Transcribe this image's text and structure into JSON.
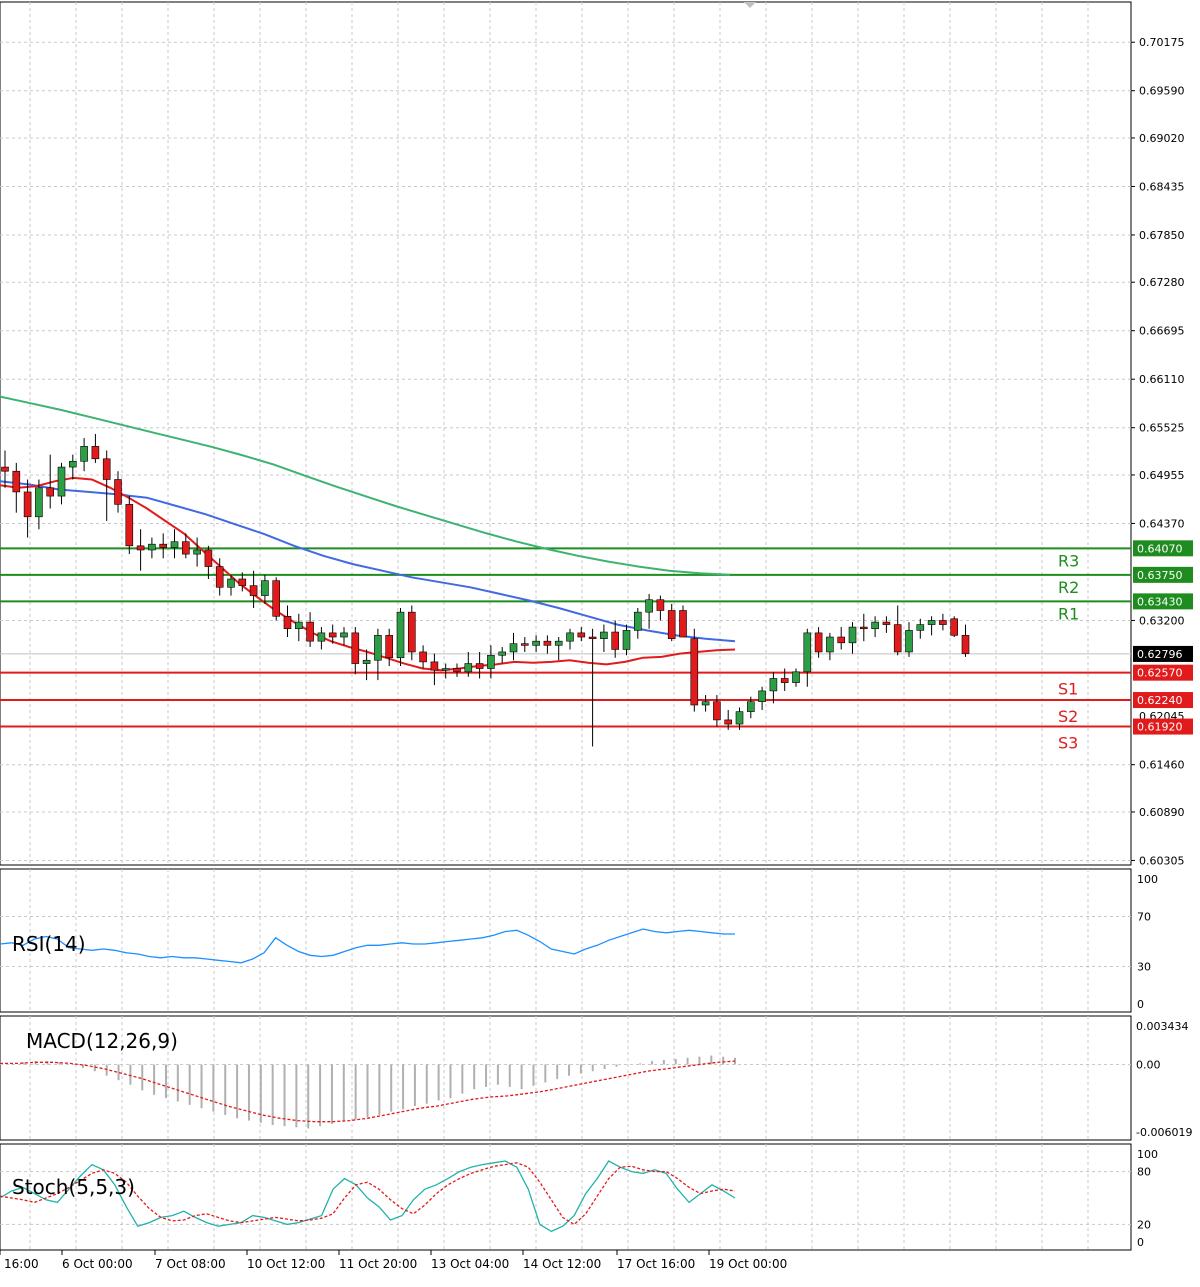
{
  "colors": {
    "background": "#ffffff",
    "grid": "#c8c8c8",
    "bull_candle": "#2e9e46",
    "bear_candle": "#e11b1b",
    "ma_fast": "#e11b1b",
    "ma_mid": "#4169e1",
    "ma_slow": "#3cb371",
    "resistance": "#1e8c1e",
    "support": "#e11b1b",
    "rsi": "#1e90ff",
    "macd_hist": "#b0b0b0",
    "macd_signal": "#e11b1b",
    "stoch_main": "#20b2aa",
    "stoch_signal": "#e11b1b",
    "price_tag": "#000000"
  },
  "chart_data": [
    {
      "type": "candlestick",
      "panel": "price",
      "y_ticks": [
        "0.70175",
        "0.69590",
        "0.69020",
        "0.68435",
        "0.67850",
        "0.67280",
        "0.66695",
        "0.66110",
        "0.65525",
        "0.64955",
        "0.64370",
        "0.63200",
        "0.61460",
        "0.60890",
        "0.60305"
      ],
      "ylim": [
        0.6025,
        0.7066
      ],
      "x_ticks": [
        "16:00",
        "6 Oct 00:00",
        "7 Oct 08:00",
        "10 Oct 12:00",
        "11 Oct 20:00",
        "13 Oct 04:00",
        "14 Oct 12:00",
        "17 Oct 16:00",
        "19 Oct 00:00"
      ],
      "current_price": "0.62796",
      "partially_hidden_label": "0.62045",
      "levels": [
        {
          "name": "R3",
          "value": 0.6407,
          "label": "0.64070",
          "kind": "resistance"
        },
        {
          "name": "R2",
          "value": 0.6375,
          "label": "0.63750",
          "kind": "resistance"
        },
        {
          "name": "R1",
          "value": 0.6343,
          "label": "0.63430",
          "kind": "resistance"
        },
        {
          "name": "S1",
          "value": 0.6257,
          "label": "0.62570",
          "kind": "support"
        },
        {
          "name": "S2",
          "value": 0.6224,
          "label": "0.62240",
          "kind": "support"
        },
        {
          "name": "S3",
          "value": 0.6192,
          "label": "0.61920",
          "kind": "support"
        }
      ],
      "candles": [
        [
          0.6505,
          0.6525,
          0.648,
          0.65
        ],
        [
          0.65,
          0.651,
          0.645,
          0.6475
        ],
        [
          0.6475,
          0.649,
          0.642,
          0.6445
        ],
        [
          0.6445,
          0.649,
          0.643,
          0.648
        ],
        [
          0.648,
          0.652,
          0.6455,
          0.647
        ],
        [
          0.647,
          0.651,
          0.646,
          0.6505
        ],
        [
          0.6505,
          0.652,
          0.649,
          0.6512
        ],
        [
          0.6512,
          0.654,
          0.65,
          0.653
        ],
        [
          0.653,
          0.6545,
          0.651,
          0.6515
        ],
        [
          0.6515,
          0.6525,
          0.644,
          0.649
        ],
        [
          0.649,
          0.65,
          0.645,
          0.646
        ],
        [
          0.646,
          0.647,
          0.64,
          0.641
        ],
        [
          0.641,
          0.643,
          0.638,
          0.6405
        ],
        [
          0.6405,
          0.642,
          0.6395,
          0.6412
        ],
        [
          0.6412,
          0.6425,
          0.6395,
          0.6408
        ],
        [
          0.6408,
          0.643,
          0.6395,
          0.6415
        ],
        [
          0.6415,
          0.6425,
          0.6395,
          0.64
        ],
        [
          0.64,
          0.642,
          0.6385,
          0.6405
        ],
        [
          0.6405,
          0.641,
          0.637,
          0.6385
        ],
        [
          0.6385,
          0.6395,
          0.635,
          0.636
        ],
        [
          0.636,
          0.6375,
          0.635,
          0.637
        ],
        [
          0.637,
          0.6378,
          0.6355,
          0.6362
        ],
        [
          0.6362,
          0.638,
          0.6335,
          0.635
        ],
        [
          0.635,
          0.6375,
          0.634,
          0.6368
        ],
        [
          0.6368,
          0.6372,
          0.632,
          0.6325
        ],
        [
          0.6325,
          0.6338,
          0.63,
          0.631
        ],
        [
          0.631,
          0.6328,
          0.6295,
          0.6318
        ],
        [
          0.6318,
          0.633,
          0.6288,
          0.6295
        ],
        [
          0.6295,
          0.6312,
          0.6285,
          0.6305
        ],
        [
          0.6305,
          0.6315,
          0.6292,
          0.63
        ],
        [
          0.63,
          0.6312,
          0.629,
          0.6305
        ],
        [
          0.6305,
          0.6312,
          0.6255,
          0.6268
        ],
        [
          0.6268,
          0.6285,
          0.6248,
          0.6272
        ],
        [
          0.6272,
          0.631,
          0.6248,
          0.6302
        ],
        [
          0.6302,
          0.631,
          0.6265,
          0.6275
        ],
        [
          0.6275,
          0.6335,
          0.6265,
          0.633
        ],
        [
          0.633,
          0.6338,
          0.6272,
          0.6282
        ],
        [
          0.6282,
          0.629,
          0.6262,
          0.627
        ],
        [
          0.627,
          0.628,
          0.6242,
          0.626
        ],
        [
          0.626,
          0.6268,
          0.625,
          0.6262
        ],
        [
          0.6262,
          0.6268,
          0.6252,
          0.6258
        ],
        [
          0.6258,
          0.6282,
          0.6252,
          0.6268
        ],
        [
          0.6268,
          0.6282,
          0.625,
          0.6262
        ],
        [
          0.6262,
          0.629,
          0.625,
          0.6278
        ],
        [
          0.6278,
          0.6288,
          0.6268,
          0.6282
        ],
        [
          0.6282,
          0.6305,
          0.6272,
          0.6292
        ],
        [
          0.6292,
          0.63,
          0.6282,
          0.629
        ],
        [
          0.629,
          0.6302,
          0.6282,
          0.6295
        ],
        [
          0.6295,
          0.6302,
          0.628,
          0.629
        ],
        [
          0.629,
          0.63,
          0.6272,
          0.6295
        ],
        [
          0.6295,
          0.631,
          0.6285,
          0.6305
        ],
        [
          0.6305,
          0.6312,
          0.6295,
          0.63
        ],
        [
          0.63,
          0.631,
          0.6168,
          0.6298
        ],
        [
          0.6298,
          0.6315,
          0.6282,
          0.6306
        ],
        [
          0.6306,
          0.632,
          0.6275,
          0.6285
        ],
        [
          0.6285,
          0.6315,
          0.6278,
          0.6308
        ],
        [
          0.6308,
          0.6335,
          0.6298,
          0.633
        ],
        [
          0.633,
          0.6352,
          0.631,
          0.6345
        ],
        [
          0.6345,
          0.635,
          0.632,
          0.6332
        ],
        [
          0.6332,
          0.634,
          0.6295,
          0.6298
        ],
        [
          0.6332,
          0.6338,
          0.63,
          0.63
        ],
        [
          0.6298,
          0.631,
          0.621,
          0.6218
        ],
        [
          0.6218,
          0.623,
          0.621,
          0.6222
        ],
        [
          0.6222,
          0.623,
          0.6192,
          0.62
        ],
        [
          0.62,
          0.6212,
          0.6188,
          0.6195
        ],
        [
          0.6195,
          0.6215,
          0.6188,
          0.621
        ],
        [
          0.621,
          0.6228,
          0.6202,
          0.6222
        ],
        [
          0.6222,
          0.624,
          0.6212,
          0.6235
        ],
        [
          0.6235,
          0.6258,
          0.622,
          0.625
        ],
        [
          0.625,
          0.6262,
          0.6235,
          0.6245
        ],
        [
          0.6245,
          0.6262,
          0.624,
          0.6258
        ],
        [
          0.6258,
          0.631,
          0.624,
          0.6305
        ],
        [
          0.6305,
          0.6312,
          0.6275,
          0.6282
        ],
        [
          0.6282,
          0.6305,
          0.6272,
          0.63
        ],
        [
          0.63,
          0.6312,
          0.6285,
          0.6293
        ],
        [
          0.6293,
          0.6318,
          0.628,
          0.6312
        ],
        [
          0.6312,
          0.6328,
          0.6295,
          0.631
        ],
        [
          0.631,
          0.6325,
          0.63,
          0.6318
        ],
        [
          0.6318,
          0.6325,
          0.6305,
          0.6315
        ],
        [
          0.6315,
          0.6338,
          0.6278,
          0.6282
        ],
        [
          0.6282,
          0.6318,
          0.6276,
          0.6308
        ],
        [
          0.6308,
          0.6322,
          0.6298,
          0.6315
        ],
        [
          0.6315,
          0.6325,
          0.6302,
          0.632
        ],
        [
          0.632,
          0.6328,
          0.6308,
          0.6315
        ],
        [
          0.6322,
          0.6325,
          0.63,
          0.6302
        ],
        [
          0.6302,
          0.6315,
          0.6276,
          0.628
        ]
      ],
      "ma_fast": [
        0.6483,
        0.648,
        0.6482,
        0.6488,
        0.6492,
        0.649,
        0.648,
        0.6468,
        0.6455,
        0.644,
        0.6425,
        0.6405,
        0.6385,
        0.6365,
        0.6348,
        0.6332,
        0.6318,
        0.6305,
        0.6295,
        0.6288,
        0.6282,
        0.6275,
        0.6268,
        0.6262,
        0.626,
        0.6262,
        0.6265,
        0.6267,
        0.627,
        0.6269,
        0.627,
        0.6272,
        0.6269,
        0.6267,
        0.627,
        0.6275,
        0.6276,
        0.628,
        0.6282,
        0.6284,
        0.6285
      ],
      "ma_mid": [
        0.6488,
        0.6484,
        0.6478,
        0.6475,
        0.6472,
        0.6468,
        0.6458,
        0.6448,
        0.6436,
        0.6424,
        0.641,
        0.6398,
        0.6388,
        0.638,
        0.6372,
        0.6366,
        0.636,
        0.6352,
        0.6344,
        0.6335,
        0.6325,
        0.6315,
        0.6308,
        0.6302,
        0.6298,
        0.6295
      ],
      "ma_slow": [
        0.659,
        0.6582,
        0.6574,
        0.6565,
        0.6556,
        0.6547,
        0.6538,
        0.6529,
        0.6519,
        0.6508,
        0.6495,
        0.6482,
        0.647,
        0.6458,
        0.6447,
        0.6436,
        0.6425,
        0.6415,
        0.6406,
        0.6398,
        0.6391,
        0.6385,
        0.638,
        0.6377,
        0.6375
      ],
      "ma_labels": [
        "R3",
        "R2",
        "R1",
        "S1",
        "S2",
        "S3"
      ]
    },
    {
      "type": "line",
      "panel": "rsi",
      "title": "RSI(14)",
      "y_ticks": [
        "100",
        "70",
        "30",
        "0"
      ],
      "ylim": [
        0,
        100
      ],
      "values": [
        48,
        49,
        47,
        52,
        54,
        52,
        45,
        44,
        43,
        44,
        43,
        41,
        40,
        38,
        37,
        38,
        37,
        37,
        36,
        35,
        34,
        33,
        36,
        41,
        53,
        47,
        42,
        39,
        38,
        39,
        42,
        45,
        47,
        47,
        48,
        49,
        48,
        48,
        49,
        50,
        51,
        52,
        53,
        55,
        58,
        59,
        55,
        50,
        44,
        42,
        40,
        44,
        47,
        51,
        54,
        57,
        60,
        58,
        57,
        58,
        59,
        58,
        57,
        56,
        56
      ],
      "ylabel": ""
    },
    {
      "type": "line",
      "panel": "macd",
      "title": "MACD(12,26,9)",
      "y_ticks": [
        "0.003434",
        "0.00",
        "-0.006019"
      ],
      "ylim": [
        -0.006019,
        0.003434
      ],
      "histogram": [
        0.0002,
        0.0001,
        0.0002,
        0.0003,
        0.0003,
        0.0002,
        0.0,
        -0.0003,
        -0.0006,
        -0.001,
        -0.0014,
        -0.0018,
        -0.0023,
        -0.0027,
        -0.003,
        -0.0033,
        -0.0036,
        -0.0039,
        -0.0042,
        -0.0045,
        -0.0048,
        -0.005,
        -0.0052,
        -0.0054,
        -0.0055,
        -0.0056,
        -0.0057,
        -0.0055,
        -0.0053,
        -0.0051,
        -0.0049,
        -0.0047,
        -0.0045,
        -0.0042,
        -0.004,
        -0.0037,
        -0.0035,
        -0.0032,
        -0.003,
        -0.0026,
        -0.0022,
        -0.002,
        -0.0018,
        -0.002,
        -0.0022,
        -0.0019,
        -0.0016,
        -0.0013,
        -0.001,
        -0.0008,
        -0.0006,
        -0.0004,
        -0.0002,
        0.0,
        0.0001,
        0.0003,
        0.0004,
        0.0005,
        0.0006,
        0.0007,
        0.0008,
        0.0007,
        0.0006
      ],
      "signal": [
        0.0001,
        0.0001,
        0.0002,
        0.0002,
        0.0001,
        -0.0001,
        -0.0004,
        -0.0008,
        -0.0012,
        -0.0017,
        -0.0022,
        -0.0027,
        -0.0032,
        -0.0037,
        -0.0041,
        -0.0045,
        -0.0048,
        -0.005,
        -0.0051,
        -0.0051,
        -0.005,
        -0.0048,
        -0.0045,
        -0.0042,
        -0.0039,
        -0.0037,
        -0.0034,
        -0.0031,
        -0.0029,
        -0.0028,
        -0.0026,
        -0.0024,
        -0.0021,
        -0.0018,
        -0.0015,
        -0.0012,
        -0.0009,
        -0.0006,
        -0.0004,
        -0.0002,
        0.0,
        0.0002,
        0.0003
      ],
      "ylabel": ""
    },
    {
      "type": "line",
      "panel": "stoch",
      "title": "Stoch(5,5,3)",
      "y_ticks": [
        "100",
        "80",
        "20",
        "0"
      ],
      "ylim": [
        0,
        100
      ],
      "main": [
        50,
        58,
        62,
        55,
        48,
        45,
        60,
        75,
        88,
        82,
        65,
        40,
        18,
        22,
        28,
        30,
        35,
        28,
        22,
        18,
        20,
        22,
        30,
        28,
        24,
        20,
        22,
        26,
        30,
        60,
        72,
        65,
        50,
        40,
        25,
        30,
        48,
        60,
        65,
        72,
        80,
        85,
        88,
        90,
        92,
        85,
        60,
        20,
        12,
        18,
        30,
        55,
        72,
        92,
        85,
        80,
        78,
        82,
        78,
        60,
        45,
        55,
        65,
        58,
        50
      ],
      "signal": [
        52,
        50,
        48,
        45,
        50,
        55,
        62,
        70,
        78,
        82,
        78,
        68,
        52,
        38,
        28,
        24,
        25,
        30,
        32,
        28,
        24,
        22,
        24,
        26,
        28,
        26,
        24,
        25,
        27,
        32,
        50,
        65,
        68,
        60,
        48,
        38,
        32,
        42,
        55,
        65,
        72,
        78,
        82,
        86,
        88,
        90,
        85,
        68,
        48,
        28,
        20,
        32,
        52,
        72,
        85,
        86,
        82,
        80,
        80,
        72,
        62,
        55,
        58,
        60,
        58
      ]
    }
  ]
}
